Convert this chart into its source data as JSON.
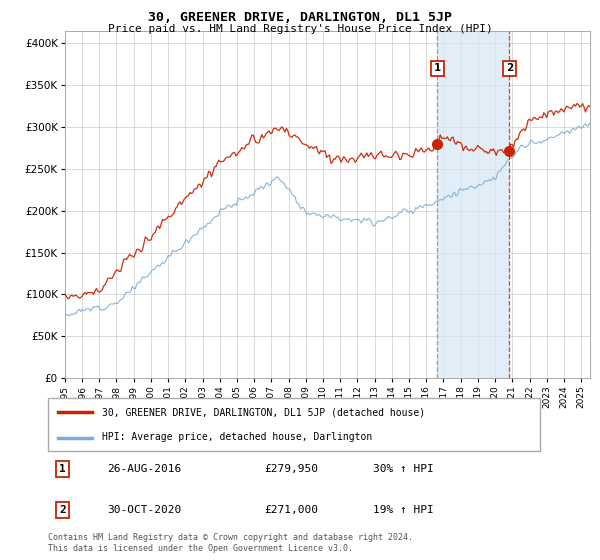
{
  "title": "30, GREENER DRIVE, DARLINGTON, DL1 5JP",
  "subtitle": "Price paid vs. HM Land Registry's House Price Index (HPI)",
  "ylabel_ticks": [
    "£0",
    "£50K",
    "£100K",
    "£150K",
    "£200K",
    "£250K",
    "£300K",
    "£350K",
    "£400K"
  ],
  "ytick_vals": [
    0,
    50000,
    100000,
    150000,
    200000,
    250000,
    300000,
    350000,
    400000
  ],
  "ylim": [
    0,
    415000
  ],
  "xlim_start": 1995.0,
  "xlim_end": 2025.5,
  "x_ticks": [
    1995,
    1996,
    1997,
    1998,
    1999,
    2000,
    2001,
    2002,
    2003,
    2004,
    2005,
    2006,
    2007,
    2008,
    2009,
    2010,
    2011,
    2012,
    2013,
    2014,
    2015,
    2016,
    2017,
    2018,
    2019,
    2020,
    2021,
    2022,
    2023,
    2024,
    2025
  ],
  "red_line_color": "#cc2200",
  "blue_line_color": "#7aacd6",
  "shade_color": "#d6e8f5",
  "grid_color": "#cccccc",
  "sale1_x": 2016.65,
  "sale1_y": 279950,
  "sale2_x": 2020.83,
  "sale2_y": 271000,
  "legend_red_label": "30, GREENER DRIVE, DARLINGTON, DL1 5JP (detached house)",
  "legend_blue_label": "HPI: Average price, detached house, Darlington",
  "table_row1_num": "1",
  "table_row1_date": "26-AUG-2016",
  "table_row1_price": "£279,950",
  "table_row1_hpi": "30% ↑ HPI",
  "table_row2_num": "2",
  "table_row2_date": "30-OCT-2020",
  "table_row2_price": "£271,000",
  "table_row2_hpi": "19% ↑ HPI",
  "footnote": "Contains HM Land Registry data © Crown copyright and database right 2024.\nThis data is licensed under the Open Government Licence v3.0.",
  "background_color": "#ffffff",
  "plot_bg_color": "#ffffff"
}
